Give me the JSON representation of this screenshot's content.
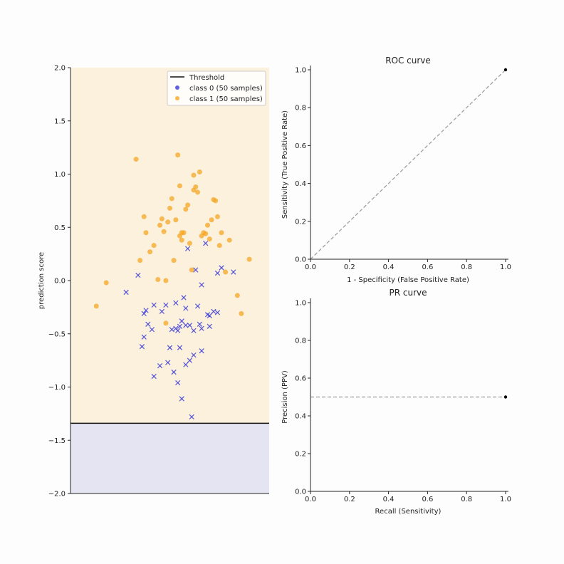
{
  "chart_data": [
    {
      "type": "scatter",
      "ylabel": "prediction score",
      "xlabel": "",
      "ylim": [
        -2.0,
        2.0
      ],
      "yticks": [
        "2.0",
        "1.5",
        "1.0",
        "0.5",
        "0.0",
        "−0.5",
        "−1.0",
        "−1.5",
        "−2.0"
      ],
      "ytick_values": [
        2.0,
        1.5,
        1.0,
        0.5,
        0.0,
        -0.5,
        -1.0,
        -1.5,
        -2.0
      ],
      "threshold": -1.34,
      "legend_position": "top-right",
      "legend": [
        "Threshold",
        "class 0 (50 samples)",
        "class 1 (50 samples)"
      ],
      "colors": {
        "class0": "#3a3ad6",
        "class1": "#f5a623",
        "threshold": "#111111",
        "above_fill": "#fbf1dc",
        "below_fill": "#e4e4f2"
      },
      "series": [
        {
          "name": "class 0 (50 samples)",
          "marker": "x",
          "x": [
            0.28,
            0.37,
            0.39,
            0.38,
            0.37,
            0.34,
            0.42,
            0.48,
            0.51,
            0.53,
            0.56,
            0.58,
            0.55,
            0.54,
            0.57,
            0.6,
            0.62,
            0.64,
            0.66,
            0.69,
            0.72,
            0.74,
            0.7,
            0.65,
            0.55,
            0.42,
            0.45,
            0.5,
            0.6,
            0.58,
            0.52,
            0.49,
            0.54,
            0.56,
            0.61,
            0.63,
            0.59,
            0.68,
            0.76,
            0.82,
            0.74,
            0.66,
            0.53,
            0.46,
            0.41,
            0.36,
            0.62,
            0.66,
            0.7,
            0.58
          ],
          "y": [
            -0.11,
            -0.53,
            -0.41,
            -0.28,
            -0.31,
            0.05,
            -0.23,
            -0.23,
            -0.46,
            -0.45,
            -0.38,
            -0.26,
            -0.43,
            -0.47,
            -0.16,
            -0.42,
            -0.47,
            -0.24,
            -0.45,
            -0.32,
            -0.29,
            -0.3,
            -0.33,
            -0.41,
            -0.63,
            -0.9,
            -0.8,
            -0.63,
            -0.75,
            -0.79,
            -0.86,
            -0.77,
            -0.96,
            -1.11,
            -1.28,
            0.1,
            0.3,
            0.35,
            0.12,
            0.08,
            0.07,
            -0.04,
            -0.21,
            -0.29,
            -0.46,
            -0.62,
            -0.7,
            -0.66,
            -0.43,
            -0.42
          ]
        },
        {
          "name": "class 1 (50 samples)",
          "marker": "o",
          "x": [
            0.13,
            0.18,
            0.33,
            0.35,
            0.37,
            0.38,
            0.4,
            0.42,
            0.44,
            0.45,
            0.46,
            0.47,
            0.48,
            0.49,
            0.5,
            0.51,
            0.52,
            0.53,
            0.54,
            0.55,
            0.56,
            0.57,
            0.58,
            0.59,
            0.6,
            0.61,
            0.62,
            0.63,
            0.64,
            0.65,
            0.66,
            0.67,
            0.68,
            0.69,
            0.7,
            0.71,
            0.72,
            0.73,
            0.74,
            0.75,
            0.76,
            0.78,
            0.8,
            0.84,
            0.86,
            0.9,
            0.55,
            0.62,
            0.48,
            0.56
          ],
          "y": [
            -0.24,
            -0.02,
            1.14,
            0.19,
            0.6,
            0.45,
            0.27,
            0.33,
            0.01,
            0.52,
            0.58,
            0.46,
            -0.4,
            0.55,
            0.68,
            0.77,
            0.19,
            0.57,
            1.18,
            0.89,
            0.38,
            0.45,
            0.67,
            0.71,
            0.35,
            0.1,
            0.99,
            0.88,
            0.83,
            1.02,
            0.42,
            0.45,
            0.44,
            0.52,
            0.39,
            0.57,
            0.76,
            0.75,
            0.6,
            0.33,
            0.45,
            0.08,
            0.38,
            -0.14,
            -0.31,
            0.2,
            0.42,
            0.85,
            0.0,
            0.45
          ]
        }
      ]
    },
    {
      "type": "line",
      "title": "ROC curve",
      "xlabel": "1 - Specificity (False Positive Rate)",
      "ylabel": "Sensitivity (True Positive Rate)",
      "xlim": [
        0.0,
        1.0
      ],
      "ylim": [
        0.0,
        1.0
      ],
      "xticks": [
        "0.0",
        "0.2",
        "0.4",
        "0.6",
        "0.8",
        "1.0"
      ],
      "yticks": [
        "0.0",
        "0.2",
        "0.4",
        "0.6",
        "0.8",
        "1.0"
      ],
      "tick_values": [
        0.0,
        0.2,
        0.4,
        0.6,
        0.8,
        1.0
      ],
      "reference_line": {
        "x": [
          0.0,
          1.0
        ],
        "y": [
          0.0,
          1.0
        ],
        "style": "dashed",
        "color": "#999999"
      },
      "points": [
        {
          "x": 1.0,
          "y": 1.0
        }
      ]
    },
    {
      "type": "line",
      "title": "PR curve",
      "xlabel": "Recall (Sensitivity)",
      "ylabel": "Precision (PPV)",
      "xlim": [
        0.0,
        1.0
      ],
      "ylim": [
        0.0,
        1.0
      ],
      "xticks": [
        "0.0",
        "0.2",
        "0.4",
        "0.6",
        "0.8",
        "1.0"
      ],
      "yticks": [
        "0.0",
        "0.2",
        "0.4",
        "0.6",
        "0.8",
        "1.0"
      ],
      "tick_values": [
        0.0,
        0.2,
        0.4,
        0.6,
        0.8,
        1.0
      ],
      "reference_line": {
        "x": [
          0.0,
          1.0
        ],
        "y": [
          0.5,
          0.5
        ],
        "style": "dashed",
        "color": "#999999"
      },
      "points": [
        {
          "x": 1.0,
          "y": 0.5
        }
      ]
    }
  ]
}
